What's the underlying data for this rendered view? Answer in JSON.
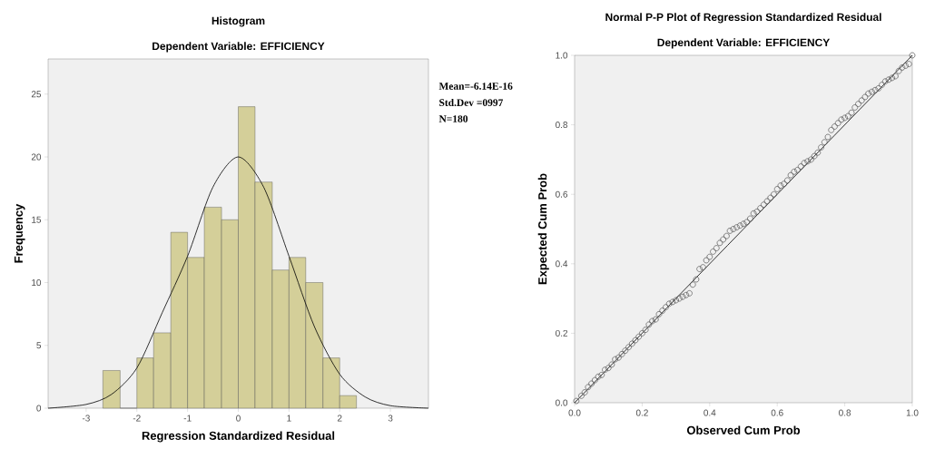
{
  "chart_data": [
    {
      "type": "histogram",
      "title": "Histogram",
      "subtitle": "Dependent Variable: EFFICIENCY",
      "xlabel": "Regression Standardized Residual",
      "ylabel": "Frequency",
      "annotations": [
        "Mean=-6.14E-16",
        "Std.Dev =0997",
        "N=180"
      ],
      "xlim": [
        -3.75,
        3.75
      ],
      "ylim": [
        0,
        27.8
      ],
      "xticks": [
        -3,
        -2,
        -1,
        0,
        1,
        2,
        3
      ],
      "yticks": [
        0,
        5,
        10,
        15,
        20,
        25
      ],
      "series": [
        {
          "color": "#d4cf99",
          "bins": [
            -2.67,
            -2.33,
            -2,
            -1.67,
            -1.33,
            -1,
            -0.67,
            -0.33,
            0,
            0.33,
            0.67,
            1,
            1.33,
            1.67,
            2,
            2.33
          ],
          "values": [
            3,
            0,
            4,
            6,
            14,
            12,
            16,
            15,
            24,
            18,
            11,
            12,
            10,
            4,
            1
          ]
        },
        {
          "type": "line",
          "color": "#000000",
          "x": [
            -3.75,
            -3,
            -2.5,
            -2,
            -1.5,
            -1,
            -0.5,
            0,
            0.5,
            1,
            1.5,
            2,
            2.5,
            3,
            3.75
          ],
          "values": [
            0,
            0.3,
            1.1,
            3.2,
            7.6,
            12.1,
            17.6,
            20,
            17.6,
            12.1,
            6.5,
            2.7,
            0.9,
            0.2,
            0
          ]
        }
      ]
    },
    {
      "type": "scatter",
      "title": "Normal P-P Plot of Regression Standardized Residual",
      "subtitle": "Dependent Variable: EFFICIENCY",
      "xlabel": "Observed Cum Prob",
      "ylabel": "Expected Cum Prob",
      "xlim": [
        0,
        1
      ],
      "ylim": [
        0,
        1
      ],
      "xticks": [
        {
          "value": 0,
          "label": "0.0"
        },
        0.2,
        0.4,
        0.6,
        0.8,
        {
          "value": 1,
          "label": "1.0"
        }
      ],
      "yticks": [
        {
          "value": 0,
          "label": "0.0"
        },
        0.2,
        0.4,
        0.6,
        0.8,
        {
          "value": 1,
          "label": "1.0"
        }
      ],
      "series": [
        {
          "color": "#555555",
          "marker": "circle",
          "x": [
            0.005,
            0.02,
            0.03,
            0.04,
            0.05,
            0.06,
            0.07,
            0.08,
            0.09,
            0.1,
            0.11,
            0.12,
            0.13,
            0.14,
            0.15,
            0.16,
            0.17,
            0.18,
            0.19,
            0.2,
            0.21,
            0.22,
            0.23,
            0.24,
            0.25,
            0.26,
            0.27,
            0.28,
            0.29,
            0.3,
            0.31,
            0.32,
            0.33,
            0.34,
            0.35,
            0.36,
            0.37,
            0.38,
            0.39,
            0.4,
            0.41,
            0.42,
            0.43,
            0.44,
            0.45,
            0.46,
            0.47,
            0.48,
            0.49,
            0.5,
            0.51,
            0.52,
            0.53,
            0.54,
            0.55,
            0.56,
            0.57,
            0.58,
            0.59,
            0.6,
            0.61,
            0.62,
            0.63,
            0.64,
            0.65,
            0.66,
            0.67,
            0.68,
            0.69,
            0.7,
            0.71,
            0.72,
            0.73,
            0.74,
            0.75,
            0.76,
            0.77,
            0.78,
            0.79,
            0.8,
            0.81,
            0.82,
            0.83,
            0.84,
            0.85,
            0.86,
            0.87,
            0.88,
            0.89,
            0.9,
            0.91,
            0.92,
            0.93,
            0.94,
            0.95,
            0.96,
            0.97,
            0.98,
            0.99,
            1.0
          ],
          "values": [
            0.005,
            0.02,
            0.03,
            0.045,
            0.055,
            0.065,
            0.075,
            0.08,
            0.095,
            0.1,
            0.11,
            0.125,
            0.13,
            0.14,
            0.15,
            0.16,
            0.17,
            0.18,
            0.19,
            0.2,
            0.21,
            0.225,
            0.235,
            0.24,
            0.255,
            0.265,
            0.275,
            0.285,
            0.29,
            0.295,
            0.3,
            0.305,
            0.31,
            0.315,
            0.34,
            0.355,
            0.385,
            0.39,
            0.41,
            0.42,
            0.435,
            0.445,
            0.46,
            0.47,
            0.48,
            0.495,
            0.5,
            0.505,
            0.51,
            0.515,
            0.52,
            0.53,
            0.545,
            0.55,
            0.56,
            0.57,
            0.58,
            0.59,
            0.6,
            0.615,
            0.625,
            0.63,
            0.64,
            0.655,
            0.665,
            0.67,
            0.68,
            0.69,
            0.695,
            0.7,
            0.71,
            0.72,
            0.735,
            0.75,
            0.765,
            0.785,
            0.795,
            0.805,
            0.815,
            0.82,
            0.825,
            0.835,
            0.85,
            0.86,
            0.87,
            0.88,
            0.89,
            0.895,
            0.9,
            0.905,
            0.915,
            0.925,
            0.93,
            0.935,
            0.94,
            0.955,
            0.965,
            0.97,
            0.975,
            1.0
          ]
        },
        {
          "type": "line",
          "color": "#000000",
          "x": [
            0,
            1
          ],
          "values": [
            0,
            1
          ]
        }
      ]
    }
  ]
}
